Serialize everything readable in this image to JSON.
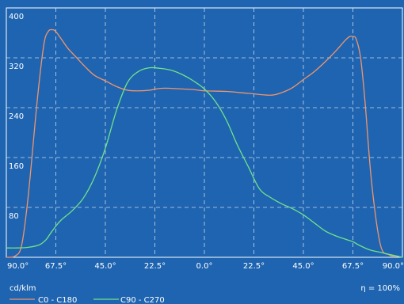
{
  "colors": {
    "background": "#1f64b0",
    "grid": "#ffffff",
    "series1": "#f0956b",
    "series2": "#6ee38a",
    "text": "#ffffff"
  },
  "footer": {
    "unit": "cd/klm",
    "efficiency": "η = 100%"
  },
  "chart_data": {
    "type": "line",
    "grid": true,
    "legend_position": "bottom-left",
    "ylim": [
      0,
      400
    ],
    "xlim": [
      -90,
      90
    ],
    "y_tick_labels": [
      "400",
      "320",
      "240",
      "160",
      "80"
    ],
    "y_tick_values": [
      400,
      320,
      240,
      160,
      80
    ],
    "x_tick_labels": [
      "90.0°",
      "67.5°",
      "45.0°",
      "22.5°",
      "0.0°",
      "22.5°",
      "45.0°",
      "67.5°",
      "90.0°"
    ],
    "x_tick_values": [
      -90,
      -67.5,
      -45,
      -22.5,
      0,
      22.5,
      45,
      67.5,
      90
    ],
    "series": [
      {
        "name": "C0 - C180",
        "x": [
          -90,
          -86,
          -83,
          -80,
          -76,
          -73,
          -71,
          -69,
          -67.5,
          -65,
          -62,
          -58,
          -54,
          -50,
          -45,
          -40,
          -35,
          -30,
          -25,
          -20,
          -15,
          -10,
          -5,
          0,
          10,
          20,
          30,
          35,
          40,
          45,
          50,
          55,
          60,
          64,
          66,
          67.5,
          69,
          71,
          73,
          76,
          80,
          84,
          87,
          90
        ],
        "y": [
          0,
          2,
          20,
          100,
          250,
          340,
          362,
          365,
          362,
          350,
          335,
          320,
          305,
          292,
          283,
          274,
          268,
          267,
          268,
          271,
          271,
          270,
          269,
          267,
          266,
          263,
          260,
          264,
          272,
          285,
          298,
          314,
          332,
          348,
          354,
          354,
          350,
          320,
          250,
          120,
          20,
          4,
          2,
          0
        ]
      },
      {
        "name": "C90 - C270",
        "x": [
          -90,
          -85,
          -80,
          -75,
          -72,
          -70,
          -67.5,
          -65,
          -60,
          -55,
          -50,
          -45,
          -40,
          -35,
          -30,
          -25,
          -20,
          -15,
          -10,
          -5,
          0,
          5,
          10,
          15,
          20,
          25,
          30,
          35,
          40,
          45,
          50,
          55,
          60,
          65,
          67.5,
          70,
          75,
          80,
          85,
          90
        ],
        "y": [
          15,
          15,
          16,
          20,
          28,
          38,
          50,
          60,
          75,
          95,
          128,
          175,
          235,
          280,
          298,
          304,
          303,
          300,
          293,
          283,
          270,
          250,
          220,
          180,
          145,
          110,
          96,
          86,
          78,
          68,
          55,
          42,
          34,
          28,
          25,
          20,
          12,
          8,
          4,
          0
        ]
      }
    ]
  }
}
